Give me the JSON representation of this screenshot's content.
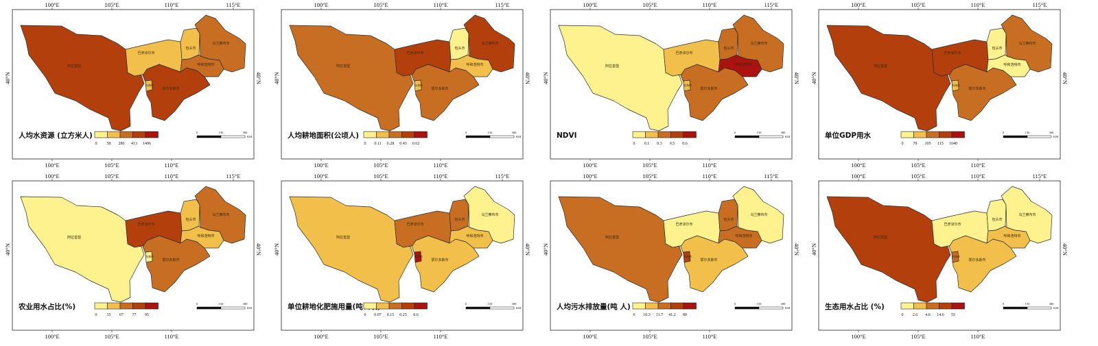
{
  "coords": {
    "lon_top": [
      "100°E",
      "105°E",
      "110°E",
      "115°E"
    ],
    "lon_bottom": [
      "100°E",
      "105°E",
      "110°E"
    ],
    "lat": "40°N"
  },
  "regions": {
    "alashan": "阿拉善盟",
    "bayannur": "巴彦淖尔市",
    "baotou": "包头市",
    "wulanchabu": "乌兰察布市",
    "hohhot": "呼和浩特市",
    "ordos": "鄂尔多斯市",
    "wuhai": "乌海市"
  },
  "scalebar": {
    "ticks": [
      "0",
      "150",
      "300"
    ],
    "unit": "KM"
  },
  "palette": [
    "#fdf28e",
    "#f2c04a",
    "#c86e22",
    "#b3400c",
    "#aa1310"
  ],
  "maps": [
    {
      "title": "人均水资源 (立方米人)",
      "breaks": [
        "0",
        "58",
        "280",
        "413",
        "1496"
      ],
      "classes": {
        "alashan": 3,
        "bayannur": 1,
        "baotou": 1,
        "wulanchabu": 2,
        "hohhot": 2,
        "ordos": 3,
        "wuhai": 1
      }
    },
    {
      "title": "人均耕地面积(公顷人)",
      "breaks": [
        "0",
        "0.11",
        "0.28",
        "0.43",
        "0.62"
      ],
      "classes": {
        "alashan": 2,
        "bayannur": 3,
        "baotou": 0,
        "wulanchabu": 3,
        "hohhot": 1,
        "ordos": 2,
        "wuhai": 1
      }
    },
    {
      "title": "NDVI",
      "breaks": [
        "0",
        "0.1",
        "0.3",
        "0.5",
        "0.6"
      ],
      "classes": {
        "alashan": 0,
        "bayannur": 1,
        "baotou": 2,
        "wulanchabu": 2,
        "hohhot": 4,
        "ordos": 2,
        "wuhai": 1
      }
    },
    {
      "title": "单位GDP用水",
      "breaks": [
        "0",
        "78",
        "105",
        "115",
        "1040"
      ],
      "classes": {
        "alashan": 3,
        "bayannur": 3,
        "baotou": 0,
        "wulanchabu": 2,
        "hohhot": 0,
        "ordos": 2,
        "wuhai": 1
      }
    },
    {
      "title": "农业用水占比(%)",
      "breaks": [
        "0",
        "35",
        "67",
        "77",
        "95"
      ],
      "classes": {
        "alashan": 0,
        "bayannur": 3,
        "baotou": 1,
        "wulanchabu": 2,
        "hohhot": 1,
        "ordos": 2,
        "wuhai": 0
      }
    },
    {
      "title": "单位耕地化肥施用量(吨公顷)",
      "breaks": [
        "0",
        "0.07",
        "0.15",
        "0.25",
        "0.6"
      ],
      "classes": {
        "alashan": 1,
        "bayannur": 2,
        "baotou": 2,
        "wulanchabu": 0,
        "hohhot": 1,
        "ordos": 1,
        "wuhai": 4
      }
    },
    {
      "title": "人均污水排放量(吨 人)",
      "breaks": [
        "0",
        "10.3",
        "11.7",
        "41.2",
        "80"
      ],
      "classes": {
        "alashan": 2,
        "bayannur": 0,
        "baotou": 2,
        "wulanchabu": 0,
        "hohhot": 2,
        "ordos": 1,
        "wuhai": 3
      }
    },
    {
      "title": "生态用水占比 (%)",
      "breaks": [
        "0",
        "2.6",
        "4.6",
        "14.6",
        "55"
      ],
      "classes": {
        "alashan": 3,
        "bayannur": 0,
        "baotou": 0,
        "wulanchabu": 0,
        "hohhot": 1,
        "ordos": 1,
        "wuhai": 2
      }
    }
  ]
}
